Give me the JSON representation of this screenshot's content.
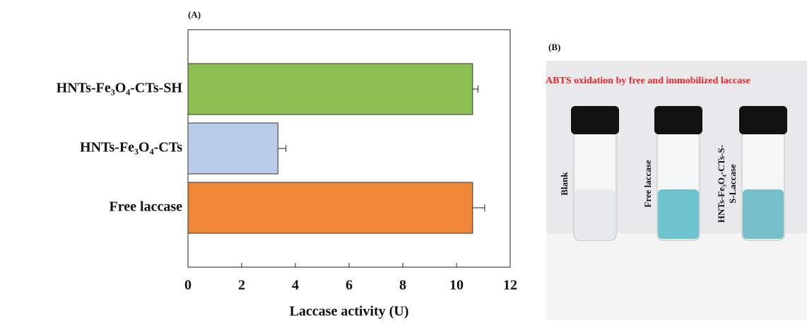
{
  "chart_data": {
    "type": "barh",
    "panel_label": "(A)",
    "categories": [
      "HNTs-Fe₃O₄-CTs-SH",
      "HNTs-Fe₃O₄-CTs",
      "Free laccase"
    ],
    "values": [
      10.6,
      3.35,
      10.6
    ],
    "errors": [
      0.2,
      0.3,
      0.45
    ],
    "colors": [
      "#8cc152",
      "#b9cde9",
      "#f0883a"
    ],
    "x_label": "Laccase activity (U)",
    "xlim": [
      0,
      12
    ],
    "xticks": [
      0,
      2,
      4,
      6,
      8,
      10,
      12
    ],
    "grid": false
  },
  "panel_b": {
    "panel_label": "(B)",
    "caption": "ABTS oxidation by free and immobilized laccase",
    "vials": [
      {
        "label": [
          "Blank"
        ],
        "liquid": "#e4e8e8"
      },
      {
        "label": [
          "Free laccase"
        ],
        "liquid": "#55b8c8"
      },
      {
        "label": [
          "HNTs-Fe₃O₄-CTs-S-",
          "S-Laccase"
        ],
        "liquid": "#5fb5c0"
      }
    ]
  }
}
